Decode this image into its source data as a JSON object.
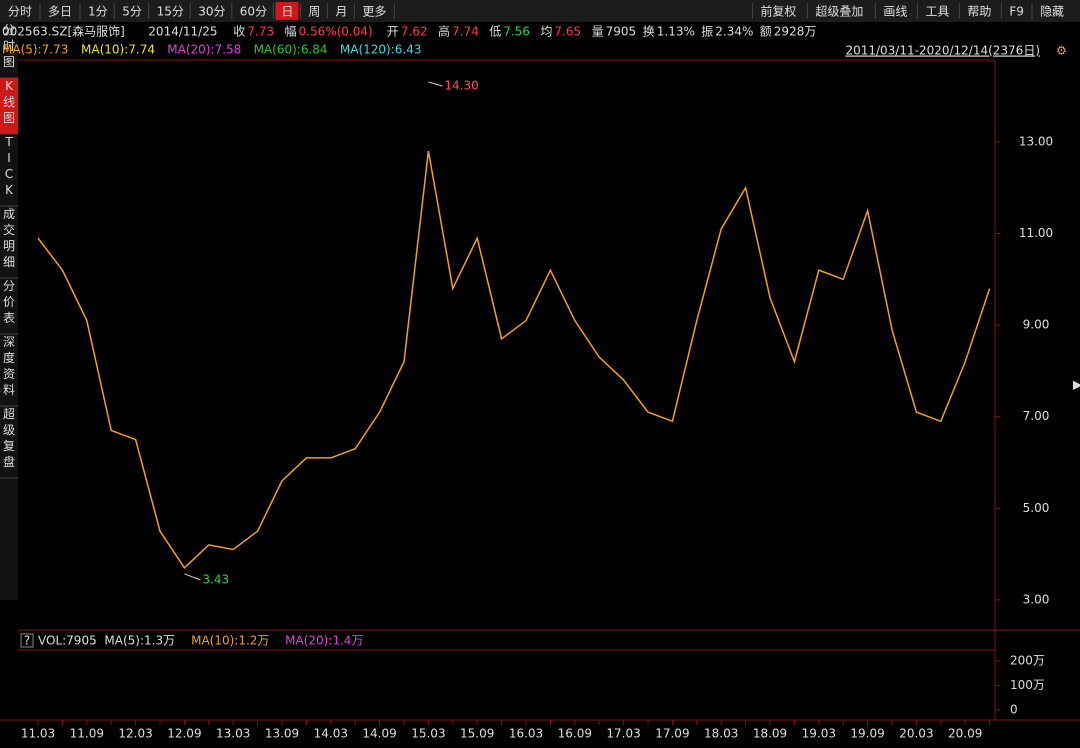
{
  "toolbar": {
    "left": [
      "分时",
      "多日",
      "1分",
      "5分",
      "15分",
      "30分",
      "60分",
      "日",
      "周",
      "月",
      "更多"
    ],
    "active_index": 7,
    "right": [
      "前复权",
      "超级叠加",
      "画线",
      "工具",
      "帮助",
      "F9",
      "隐藏"
    ]
  },
  "side_tabs": [
    "分时图",
    "K线图",
    "TICK",
    "成交明细",
    "分价表",
    "深度资料",
    "超级复盘"
  ],
  "side_active_index": 1,
  "info_bar": {
    "code": "002563.SZ[森马服饰]",
    "date": "2014/11/25",
    "fields": [
      {
        "label": "收",
        "value": "7.73",
        "color": "#ff3b3b"
      },
      {
        "label": "幅",
        "value": "0.56%(0.04)",
        "color": "#ff3b3b"
      },
      {
        "label": "开",
        "value": "7.62",
        "color": "#ff3b3b"
      },
      {
        "label": "高",
        "value": "7.74",
        "color": "#ff3b3b"
      },
      {
        "label": "低",
        "value": "7.56",
        "color": "#2fd14a"
      },
      {
        "label": "均",
        "value": "7.65",
        "color": "#ff3b3b"
      },
      {
        "label": "量",
        "value": "7905",
        "color": "#dddddd"
      },
      {
        "label": "换",
        "value": "1.13%",
        "color": "#dddddd"
      },
      {
        "label": "振",
        "value": "2.34%",
        "color": "#dddddd"
      },
      {
        "label": "额",
        "value": "2928万",
        "color": "#dddddd"
      }
    ]
  },
  "ma_bar": [
    {
      "text": "MA(5):7.73",
      "color": "#f0a020"
    },
    {
      "text": "MA(10):7.74",
      "color": "#f0e020"
    },
    {
      "text": "MA(20):7.58",
      "color": "#e040e0"
    },
    {
      "text": "MA(60):6.84",
      "color": "#30c030"
    },
    {
      "text": "MA(120):6.43",
      "color": "#40d8e0"
    }
  ],
  "range_label": "2011/03/11-2020/12/14(2376日)",
  "volume_bar": {
    "help": "?",
    "items": [
      {
        "text": "VOL:7905",
        "color": "#dddddd"
      },
      {
        "text": "MA(5):1.3万",
        "color": "#dddddd"
      },
      {
        "text": "MA(10):1.2万",
        "color": "#f0a020"
      },
      {
        "text": "MA(20):1.4万",
        "color": "#e040e0"
      }
    ],
    "ticks": [
      "200万",
      "100万",
      "0"
    ]
  },
  "chart_data": {
    "type": "line",
    "categories": [
      "11.03",
      null,
      "11.09",
      null,
      "12.03",
      null,
      "12.09",
      null,
      "13.03",
      null,
      "13.09",
      null,
      "14.03",
      null,
      "14.09",
      null,
      "15.03",
      null,
      "15.09",
      null,
      "16.03",
      null,
      "16.09",
      null,
      "17.03",
      null,
      "17.09",
      null,
      "18.03",
      null,
      "18.09",
      null,
      "19.03",
      null,
      "19.09",
      null,
      "20.03",
      null,
      "20.09",
      null
    ],
    "values": [
      10.9,
      10.2,
      9.1,
      6.7,
      6.5,
      4.5,
      3.7,
      4.2,
      4.1,
      4.5,
      5.6,
      6.1,
      6.1,
      6.3,
      7.1,
      8.2,
      12.8,
      9.8,
      10.9,
      8.7,
      9.1,
      10.2,
      9.1,
      8.3,
      7.8,
      7.1,
      6.9,
      9.1,
      11.1,
      12.0,
      9.6,
      8.2,
      10.2,
      10.0,
      11.5,
      8.9,
      7.1,
      6.9,
      8.2,
      9.8
    ],
    "color": "#f0a020",
    "ylim": [
      2.56,
      14.79
    ],
    "yticks": [
      {
        "value": 3,
        "label": "3.00"
      },
      {
        "value": 5,
        "label": "5.00"
      },
      {
        "value": 7,
        "label": "7.00"
      },
      {
        "value": 9,
        "label": "9.00"
      },
      {
        "value": 11,
        "label": "11.00"
      },
      {
        "value": 13,
        "label": "13.00"
      }
    ],
    "annotations": [
      "14.30",
      "3.43"
    ]
  }
}
